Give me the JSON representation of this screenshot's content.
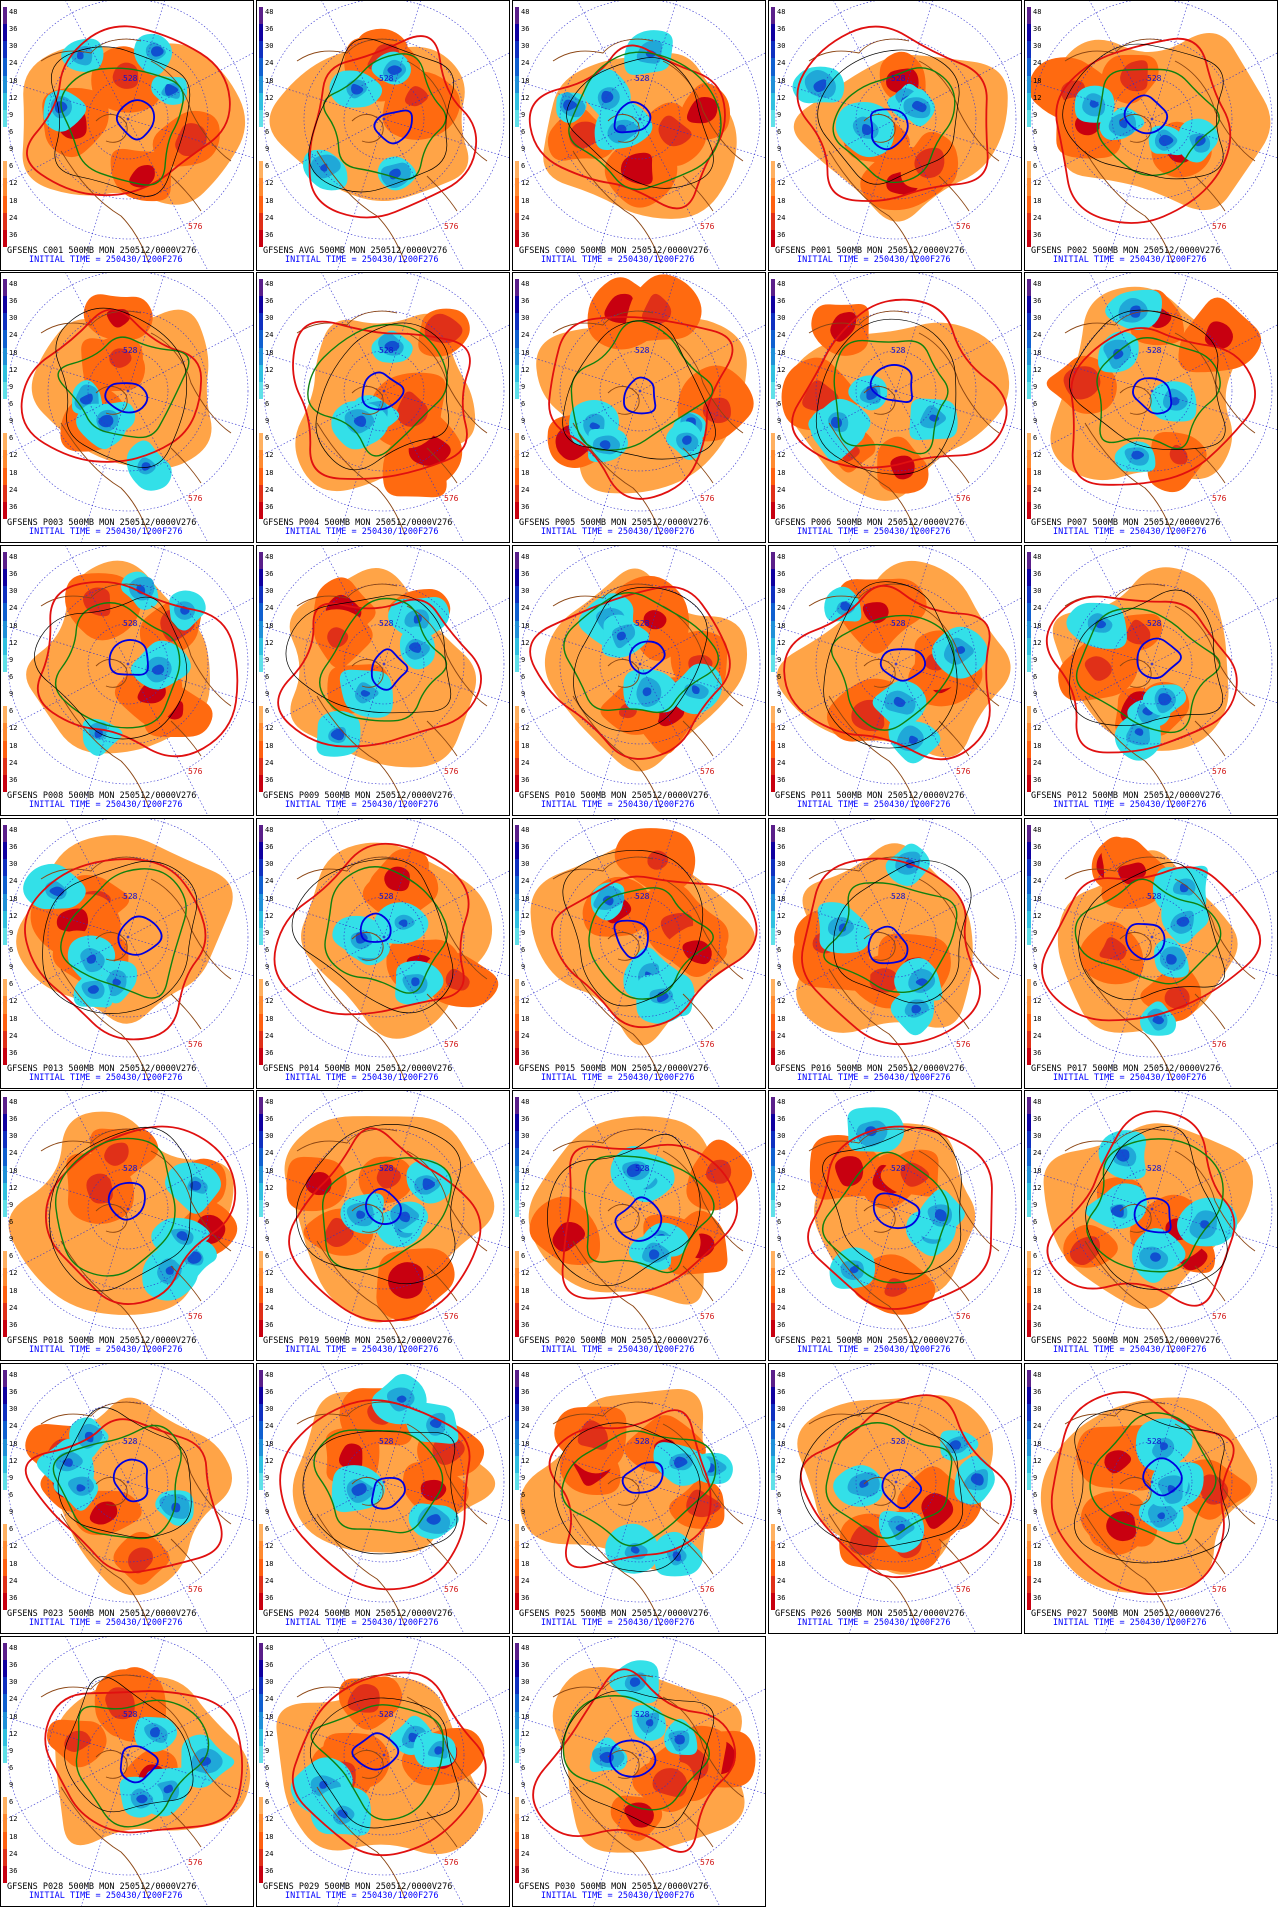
{
  "panels": [
    {
      "member": "C001"
    },
    {
      "member": "AVG"
    },
    {
      "member": "C000"
    },
    {
      "member": "P001"
    },
    {
      "member": "P002"
    },
    {
      "member": "P003"
    },
    {
      "member": "P004"
    },
    {
      "member": "P005"
    },
    {
      "member": "P006"
    },
    {
      "member": "P007"
    },
    {
      "member": "P008"
    },
    {
      "member": "P009"
    },
    {
      "member": "P010"
    },
    {
      "member": "P011"
    },
    {
      "member": "P012"
    },
    {
      "member": "P013"
    },
    {
      "member": "P014"
    },
    {
      "member": "P015"
    },
    {
      "member": "P016"
    },
    {
      "member": "P017"
    },
    {
      "member": "P018"
    },
    {
      "member": "P019"
    },
    {
      "member": "P020"
    },
    {
      "member": "P021"
    },
    {
      "member": "P022"
    },
    {
      "member": "P023"
    },
    {
      "member": "P024"
    },
    {
      "member": "P025"
    },
    {
      "member": "P026"
    },
    {
      "member": "P027"
    },
    {
      "member": "P028"
    },
    {
      "member": "P029"
    },
    {
      "member": "P030"
    }
  ],
  "caption": {
    "prefix": "GFSENS",
    "suffix": "500MB MON 250512/0000V276",
    "init": "INITIAL TIME = 250430/1200F276"
  },
  "scale_ticks": [
    "48",
    "36",
    "30",
    "24",
    "18",
    "12",
    "9",
    "6",
    "9",
    "6",
    "12",
    "18",
    "24",
    "36"
  ],
  "contour_labels": {
    "high": "576",
    "low": "528"
  },
  "colors": {
    "warm_light": "#ff9a33",
    "warm_mid": "#ff6a10",
    "warm_deep": "#e03018",
    "warm_max": "#c80010",
    "cool_light": "#33e0e8",
    "cool_mid": "#20a8d8",
    "cool_deep": "#1050d0",
    "cool_max": "#1000a0",
    "contour_576": "#e01010",
    "contour_mid": "#108010",
    "contour_528": "#0000e0",
    "coast": "#8b4513",
    "grid": "#3030d0"
  }
}
